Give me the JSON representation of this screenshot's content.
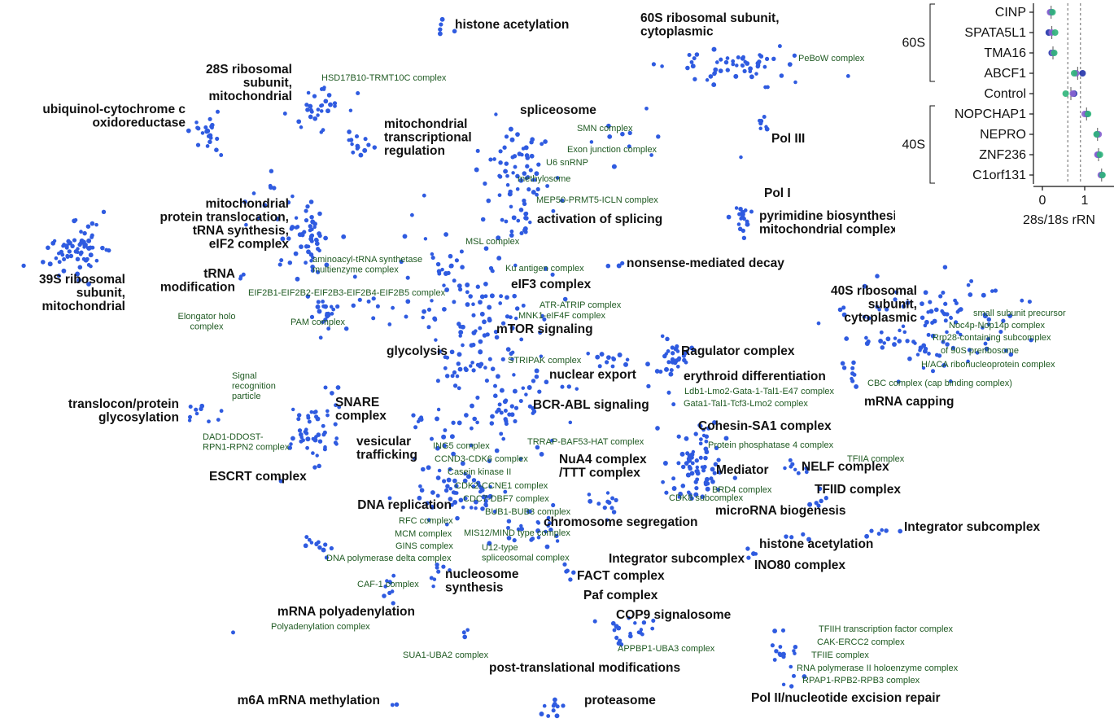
{
  "chart_data": [
    {
      "type": "scatter",
      "palette": {
        "dot": "#2f5be0",
        "major": "#111111",
        "minor": "#1f5a22"
      },
      "major_labels": [
        "histone acetylation",
        "60S ribosomal subunit,\ncytoplasmic",
        "28S ribosomal\nsubunit,\nmitochondrial",
        "ubiquinol-cytochrome c\noxidoreductase",
        "mitochondrial\ntranscriptional\nregulation",
        "spliceosome",
        "Pol III",
        "Pol I",
        "pyrimidine biosynthesis/\nmitochondrial complex II",
        "mitochondrial\nprotein translocation,\ntRNA synthesis,\neIF2 complex",
        "activation of splicing",
        "39S ribosomal\nsubunit,\nmitochondrial",
        "tRNA\nmodification",
        "nonsense-mediated decay",
        "eIF3 complex",
        "40S ribosomal\nsubunit,\ncytoplasmic",
        "mTOR signaling",
        "glycolysis",
        "Ragulator complex",
        "nuclear export",
        "erythroid differentiation",
        "translocon/protein\nglycosylation",
        "SNARE\ncomplex",
        "BCR-ABL signaling",
        "mRNA capping",
        "Cohesin-SA1 complex",
        "vesicular\ntrafficking",
        "NuA4 complex\n/TTT complex",
        "ESCRT complex",
        "Mediator",
        "NELF complex",
        "TFIID complex",
        "DNA replication",
        "microRNA biogenesis",
        "chromosome segregation",
        "Integrator subcomplex",
        "histone acetylation",
        "Integrator subcomplex",
        "INO80 complex",
        "nucleosome\nsynthesis",
        "FACT complex",
        "Paf complex",
        "mRNA polyadenylation",
        "COP9 signalosome",
        "post-translational modifications",
        "Pol II/nucleotide excision repair",
        "m6A mRNA methylation",
        "proteasome"
      ],
      "minor_labels": [
        "HSD17B10-TRMT10C complex",
        "PeBoW complex",
        "SMN complex",
        "Exon junction complex",
        "U6 snRNP",
        "methylosome",
        "MEP50-PRMT5-ICLN complex",
        "MSL complex",
        "aminoacyl-tRNA synthetase\nmultienzyme complex",
        "EIF2B1-EIF2B2-EIF2B3-EIF2B4-EIF2B5 complex",
        "Ku antigen complex",
        "Elongator holo\ncomplex",
        "PAM complex",
        "ATR-ATRIP complex",
        "MNK1-eIF4F complex",
        "small subunit precursor",
        "Noc4p-Nop14p complex",
        "Rrp28-containing subcomplex",
        "of 90S preribosome",
        "H/ACA ribonucleoprotein complex",
        "STRIPAK complex",
        "Ldb1-Lmo2-Gata-1-Tal1-E47 complex",
        "Gata1-Tal1-Tcf3-Lmo2 complex",
        "CBC complex (cap binding complex)",
        "Signal\nrecognition\nparticle",
        "DAD1-DDOST-\nRPN1-RPN2 complex",
        "TRRAP-BAF53-HAT complex",
        "Protein phosphatase 4 complex",
        "TFIIA complex",
        "ING5 complex",
        "CCND3-CDK6 complex",
        "Casein kinase II",
        "CDK2-CCNE1 complex",
        "CDC7-DBF7 complex",
        "BRD4 complex",
        "CDK8 subcomplex",
        "BUB1-BUB3 complex",
        "RFC complex",
        "MCM complex",
        "MIS12/MIND type complex",
        "GINS complex",
        "U12-type\nspliceosomal complex",
        "DNA polymerase delta complex",
        "CAF-1 complex",
        "Polyadenylation complex",
        "TFIIH transcription factor complex",
        "CAK-ERCC2 complex",
        "TFIIE complex",
        "APPBP1-UBA3 complex",
        "SUA1-UBA2 complex",
        "RNA polymerase II holoenzyme complex",
        "RPAP1-RPB2-RPB3 complex"
      ]
    },
    {
      "type": "scatter",
      "xlabel": "28s/18s rRN",
      "x_ticks": [
        "0",
        "1"
      ],
      "reference_lines_x": [
        0.6,
        0.9
      ],
      "group_labels": [
        "60S",
        "40S"
      ],
      "categories": [
        "CINP",
        "SPATA5L1",
        "TMA16",
        "ABCF1",
        "Control",
        "NOPCHAP1",
        "NEPRO",
        "ZNF236",
        "C1orf131"
      ],
      "replicate_colors": [
        "#2233aa",
        "#8a63d2",
        "#2fb57a"
      ],
      "values": [
        [
          0.2,
          0.18,
          0.24
        ],
        [
          0.15,
          0.22,
          0.3
        ],
        [
          0.22,
          0.25,
          0.28
        ],
        [
          0.95,
          0.8,
          0.75
        ],
        [
          0.75,
          0.72,
          0.55
        ],
        [
          1.05,
          1.0,
          1.08
        ],
        [
          1.3,
          1.33,
          1.28
        ],
        [
          1.32,
          1.3,
          1.36
        ],
        [
          1.4,
          1.38,
          1.42
        ]
      ]
    }
  ]
}
